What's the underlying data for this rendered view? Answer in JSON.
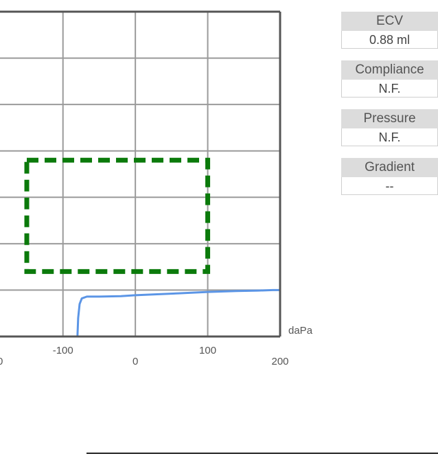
{
  "chart_data": {
    "type": "line",
    "x_unit": "daPa",
    "x_ticks": [
      {
        "value": -100,
        "label": "-100"
      },
      {
        "value": 0,
        "label": "0"
      },
      {
        "value": 100,
        "label": "100"
      },
      {
        "value": 200,
        "label": "200"
      }
    ],
    "x_tick_partial": "0",
    "xlim": [
      -187,
      200
    ],
    "ylim": [
      0,
      7
    ],
    "grid": true,
    "series": [
      {
        "color": "#5b95e6",
        "points": [
          [
            -80,
            0
          ],
          [
            -79,
            0.4
          ],
          [
            -77,
            0.7
          ],
          [
            -74,
            0.82
          ],
          [
            -67,
            0.86
          ],
          [
            -50,
            0.86
          ],
          [
            -20,
            0.87
          ],
          [
            0,
            0.89
          ],
          [
            30,
            0.91
          ],
          [
            60,
            0.93
          ],
          [
            100,
            0.96
          ],
          [
            140,
            0.98
          ],
          [
            170,
            0.99
          ],
          [
            190,
            1.0
          ],
          [
            200,
            1.0
          ]
        ]
      }
    ],
    "reference_box": {
      "x0": -150,
      "x1": 100,
      "y0": 1.4,
      "y1": 3.8,
      "color": "#0b7a0b",
      "style": "dashed"
    }
  },
  "panels": [
    {
      "label": "ECV",
      "value": "0.88 ml"
    },
    {
      "label": "Compliance",
      "value": "N.F."
    },
    {
      "label": "Pressure",
      "value": "N.F."
    },
    {
      "label": "Gradient",
      "value": "--"
    }
  ]
}
